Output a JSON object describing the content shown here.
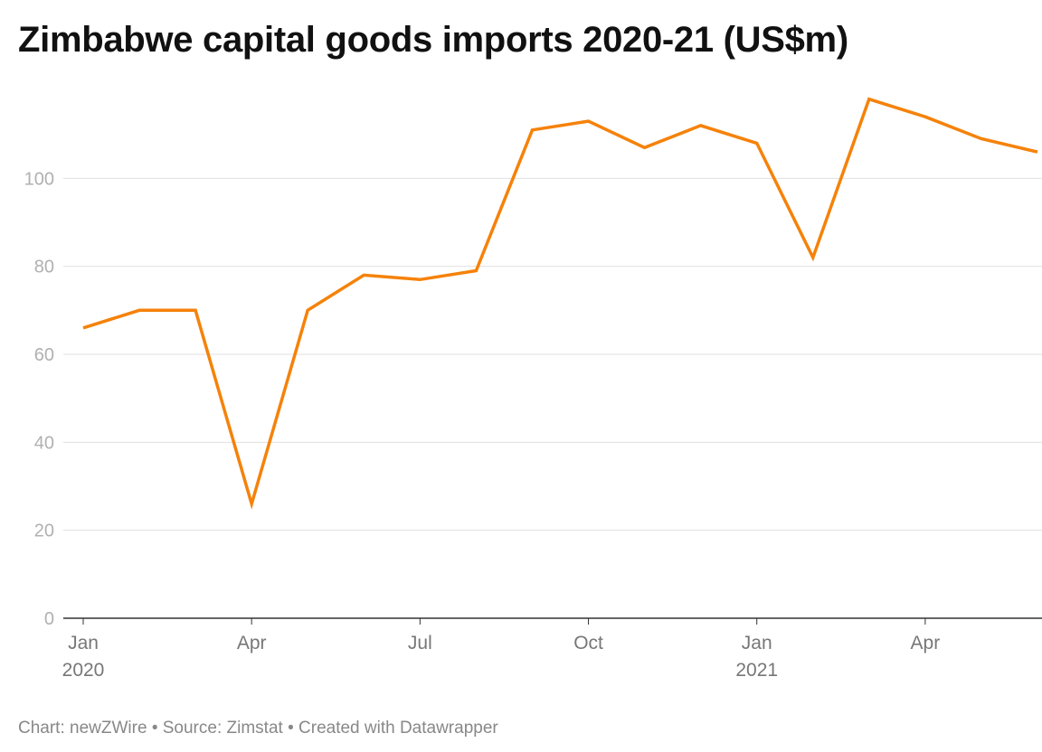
{
  "title": "Zimbabwe capital goods imports 2020-21 (US$m)",
  "footer": {
    "credit": "Chart: newZWire",
    "source": "Source: Zimstat",
    "tool": "Created with Datawrapper",
    "separator": "•"
  },
  "colors": {
    "line": "#f5820a",
    "grid": "#e0e0e0",
    "baseline": "#333333",
    "ytick": "#b0b0b0",
    "xtick": "#777777"
  },
  "chart_data": {
    "type": "line",
    "title": "Zimbabwe capital goods imports 2020-21 (US$m)",
    "xlabel": "",
    "ylabel": "",
    "x": [
      "2020-01",
      "2020-02",
      "2020-03",
      "2020-04",
      "2020-05",
      "2020-06",
      "2020-07",
      "2020-08",
      "2020-09",
      "2020-10",
      "2020-11",
      "2020-12",
      "2021-01",
      "2021-02",
      "2021-03",
      "2021-04",
      "2021-05",
      "2021-06"
    ],
    "series": [
      {
        "values": [
          66,
          70,
          70,
          26,
          70,
          78,
          77,
          79,
          111,
          113,
          107,
          112,
          108,
          82,
          118,
          114,
          109,
          106
        ]
      }
    ],
    "ylim": [
      0,
      120
    ],
    "yticks": [
      0,
      20,
      40,
      60,
      80,
      100
    ],
    "xticks": [
      {
        "x": "2020-01",
        "label": "Jan",
        "year": "2020"
      },
      {
        "x": "2020-04",
        "label": "Apr",
        "year": ""
      },
      {
        "x": "2020-07",
        "label": "Jul",
        "year": ""
      },
      {
        "x": "2020-10",
        "label": "Oct",
        "year": ""
      },
      {
        "x": "2021-01",
        "label": "Jan",
        "year": "2021"
      },
      {
        "x": "2021-04",
        "label": "Apr",
        "year": ""
      }
    ],
    "grid": true,
    "legend": "none"
  }
}
